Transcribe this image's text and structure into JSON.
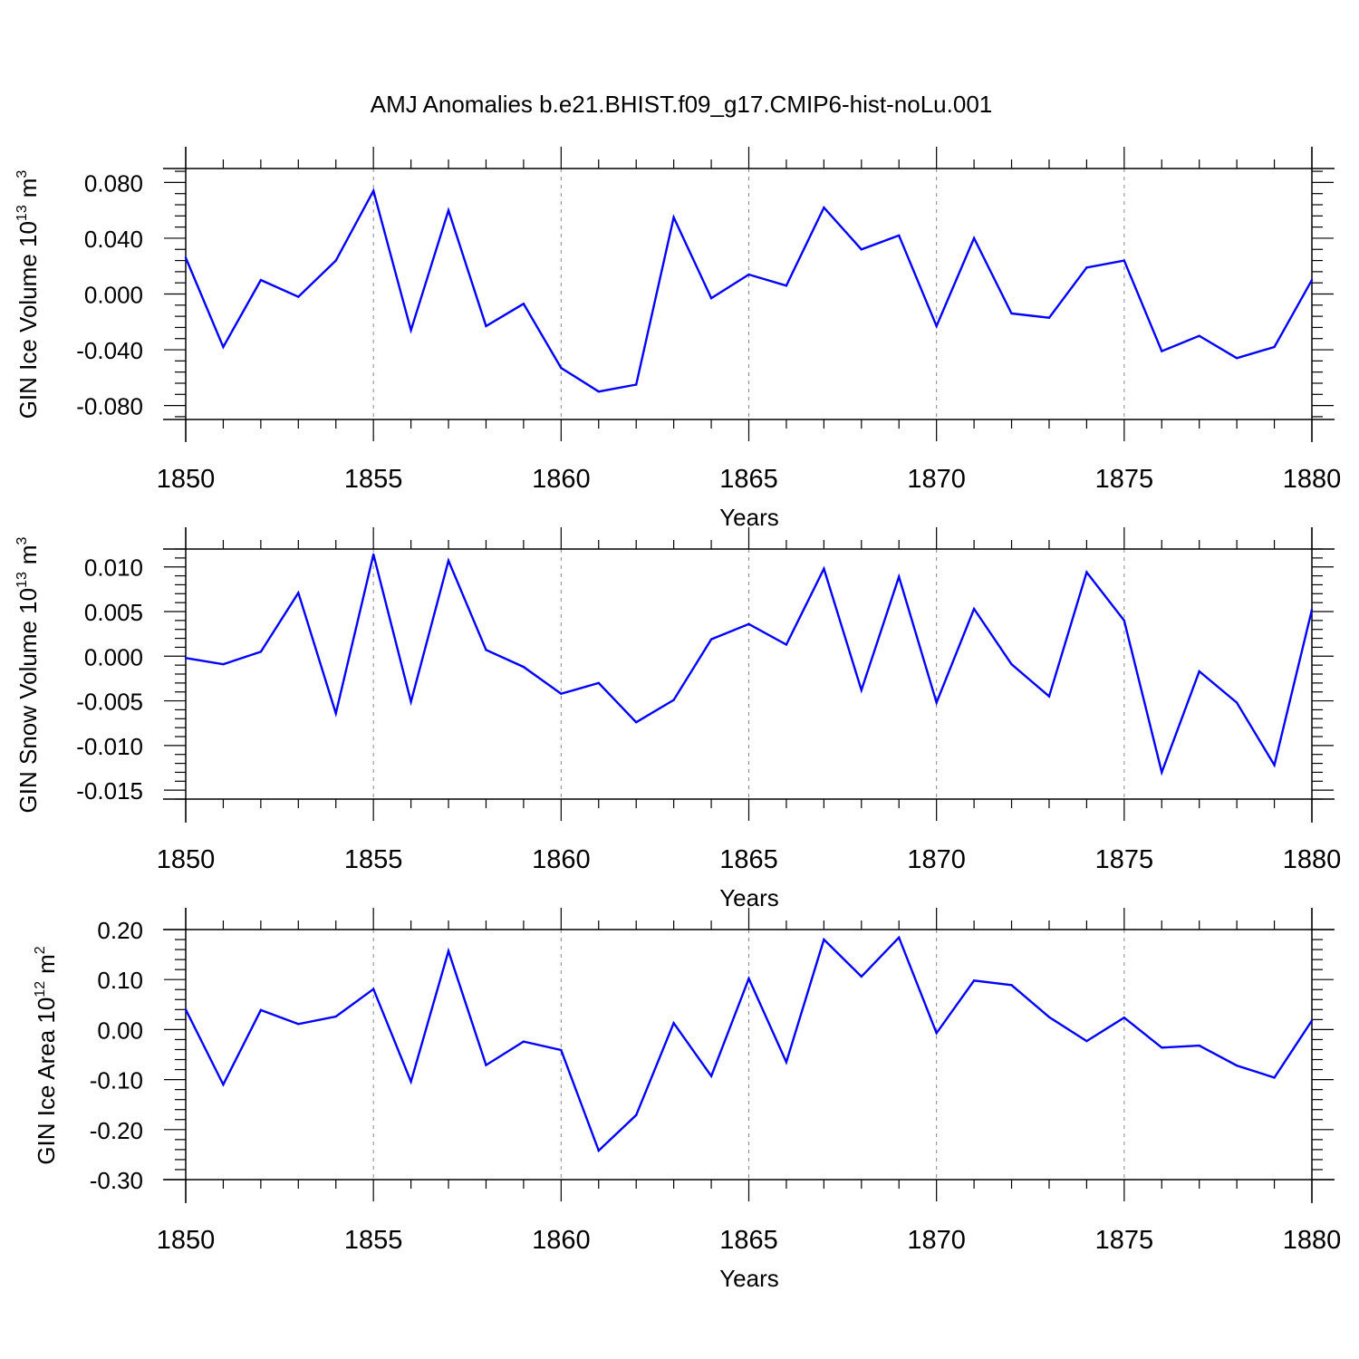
{
  "title": "AMJ Anomalies b.e21.BHIST.f09_g17.CMIP6-hist-noLu.001",
  "colors": {
    "line": "#0000ff",
    "axis": "#000000",
    "grid": "#888888"
  },
  "chart_data": [
    {
      "type": "line",
      "ylabel_main": "GIN Ice Volume 10",
      "ylabel_exp": "13",
      "ylabel_unit": "m",
      "ylabel_unit_exp": "3",
      "xlabel": "Years",
      "xlim": [
        1850,
        1880
      ],
      "ylim": [
        -0.09,
        0.09
      ],
      "yticks": [
        -0.08,
        -0.04,
        0.0,
        0.04,
        0.08
      ],
      "ytick_labels": [
        "-0.080",
        "-0.040",
        "0.000",
        "0.040",
        "0.080"
      ],
      "xticks": [
        1850,
        1855,
        1860,
        1865,
        1870,
        1875,
        1880
      ],
      "xtick_labels": [
        "1850",
        "1855",
        "1860",
        "1865",
        "1870",
        "1875",
        "1880"
      ],
      "grid_x": [
        1855,
        1860,
        1865,
        1870,
        1875
      ],
      "x": [
        1850,
        1851,
        1852,
        1853,
        1854,
        1855,
        1856,
        1857,
        1858,
        1859,
        1860,
        1861,
        1862,
        1863,
        1864,
        1865,
        1866,
        1867,
        1868,
        1869,
        1870,
        1871,
        1872,
        1873,
        1874,
        1875,
        1876,
        1877,
        1878,
        1879,
        1880
      ],
      "series": [
        {
          "values": [
            0.026,
            -0.038,
            0.01,
            -0.002,
            0.024,
            0.074,
            -0.026,
            0.06,
            -0.023,
            -0.007,
            -0.053,
            -0.07,
            -0.065,
            0.055,
            -0.003,
            0.014,
            0.006,
            0.062,
            0.032,
            0.042,
            -0.023,
            0.04,
            -0.014,
            -0.017,
            0.019,
            0.024,
            -0.041,
            -0.03,
            -0.046,
            -0.038,
            0.01
          ]
        }
      ]
    },
    {
      "type": "line",
      "ylabel_main": "GIN Snow Volume 10",
      "ylabel_exp": "13",
      "ylabel_unit": "m",
      "ylabel_unit_exp": "3",
      "xlabel": "Years",
      "xlim": [
        1850,
        1880
      ],
      "ylim": [
        -0.016,
        0.012
      ],
      "yticks": [
        -0.015,
        -0.01,
        -0.005,
        0.0,
        0.005,
        0.01
      ],
      "ytick_labels": [
        "-0.015",
        "-0.010",
        "-0.005",
        "0.000",
        "0.005",
        "0.010"
      ],
      "xticks": [
        1850,
        1855,
        1860,
        1865,
        1870,
        1875,
        1880
      ],
      "xtick_labels": [
        "1850",
        "1855",
        "1860",
        "1865",
        "1870",
        "1875",
        "1880"
      ],
      "grid_x": [
        1855,
        1860,
        1865,
        1870,
        1875
      ],
      "x": [
        1850,
        1851,
        1852,
        1853,
        1854,
        1855,
        1856,
        1857,
        1858,
        1859,
        1860,
        1861,
        1862,
        1863,
        1864,
        1865,
        1866,
        1867,
        1868,
        1869,
        1870,
        1871,
        1872,
        1873,
        1874,
        1875,
        1876,
        1877,
        1878,
        1879,
        1880
      ],
      "series": [
        {
          "values": [
            -0.0002,
            -0.0009,
            0.0005,
            0.0071,
            -0.0064,
            0.0114,
            -0.0051,
            0.0107,
            0.0007,
            -0.0012,
            -0.0042,
            -0.003,
            -0.0074,
            -0.0049,
            0.0019,
            0.0036,
            0.0013,
            0.0098,
            -0.0038,
            0.0089,
            -0.0052,
            0.0053,
            -0.0009,
            -0.0045,
            0.0094,
            0.004,
            -0.013,
            -0.0017,
            -0.0052,
            -0.0122,
            0.0052
          ]
        }
      ]
    },
    {
      "type": "line",
      "ylabel_main": "GIN Ice Area 10",
      "ylabel_exp": "12",
      "ylabel_unit": "m",
      "ylabel_unit_exp": "2",
      "xlabel": "Years",
      "xlim": [
        1850,
        1880
      ],
      "ylim": [
        -0.3,
        0.2
      ],
      "yticks": [
        -0.3,
        -0.2,
        -0.1,
        0.0,
        0.1,
        0.2
      ],
      "ytick_labels": [
        "-0.30",
        "-0.20",
        "-0.10",
        "0.00",
        "0.10",
        "0.20"
      ],
      "xticks": [
        1850,
        1855,
        1860,
        1865,
        1870,
        1875,
        1880
      ],
      "xtick_labels": [
        "1850",
        "1855",
        "1860",
        "1865",
        "1870",
        "1875",
        "1880"
      ],
      "grid_x": [
        1855,
        1860,
        1865,
        1870,
        1875
      ],
      "x": [
        1850,
        1851,
        1852,
        1853,
        1854,
        1855,
        1856,
        1857,
        1858,
        1859,
        1860,
        1861,
        1862,
        1863,
        1864,
        1865,
        1866,
        1867,
        1868,
        1869,
        1870,
        1871,
        1872,
        1873,
        1874,
        1875,
        1876,
        1877,
        1878,
        1879,
        1880
      ],
      "series": [
        {
          "values": [
            0.04,
            -0.11,
            0.039,
            0.011,
            0.026,
            0.081,
            -0.104,
            0.157,
            -0.071,
            -0.024,
            -0.041,
            -0.242,
            -0.171,
            0.013,
            -0.093,
            0.102,
            -0.065,
            0.18,
            0.106,
            0.184,
            -0.007,
            0.098,
            0.089,
            0.025,
            -0.023,
            0.024,
            -0.036,
            -0.032,
            -0.072,
            -0.096,
            0.018
          ]
        }
      ]
    }
  ]
}
